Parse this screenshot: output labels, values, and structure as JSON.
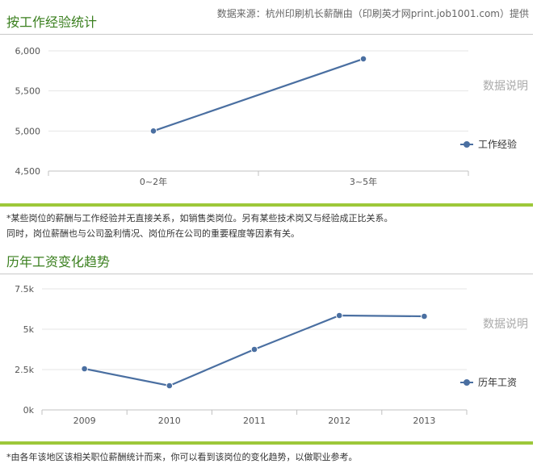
{
  "colors": {
    "title": "#3a7f1e",
    "line": "#4a6fa1",
    "accent_bar": "#9dc83a",
    "grid": "#e6e6e6"
  },
  "source_text": "数据来源：杭州印刷机长薪酬由（印刷英才网print.job1001.com）提供",
  "chart_data": [
    {
      "type": "line",
      "title": "按工作经验统计",
      "categories": [
        "0~2年",
        "3~5年"
      ],
      "series": [
        {
          "name": "工作经验",
          "values": [
            5000,
            5900
          ]
        }
      ],
      "ylim": [
        4500,
        6000
      ],
      "yticks": [
        4500,
        5000,
        5500,
        6000
      ],
      "ytick_labels": [
        "4,500",
        "5,000",
        "5,500",
        "6,000"
      ],
      "grid": true,
      "legend": "right",
      "annotation": "数据说明",
      "note_lines": [
        "*某些岗位的薪酬与工作经验并无直接关系，如销售类岗位。另有某些技术岗又与经验成正比关系。",
        "同时，岗位薪酬也与公司盈利情况、岗位所在公司的重要程度等因素有关。"
      ]
    },
    {
      "type": "line",
      "title": "历年工资变化趋势",
      "categories": [
        "2009",
        "2010",
        "2011",
        "2012",
        "2013"
      ],
      "series": [
        {
          "name": "历年工资",
          "values": [
            2550,
            1500,
            3750,
            5850,
            5800
          ]
        }
      ],
      "ylim": [
        0,
        7500
      ],
      "yticks": [
        0,
        2500,
        5000,
        7500
      ],
      "ytick_labels": [
        "0k",
        "2.5k",
        "5k",
        "7.5k"
      ],
      "grid": true,
      "legend": "right",
      "annotation": "数据说明",
      "note_lines": [
        "*由各年该地区该相关职位薪酬统计而来，你可以看到该岗位的变化趋势，以做职业参考。"
      ]
    }
  ]
}
